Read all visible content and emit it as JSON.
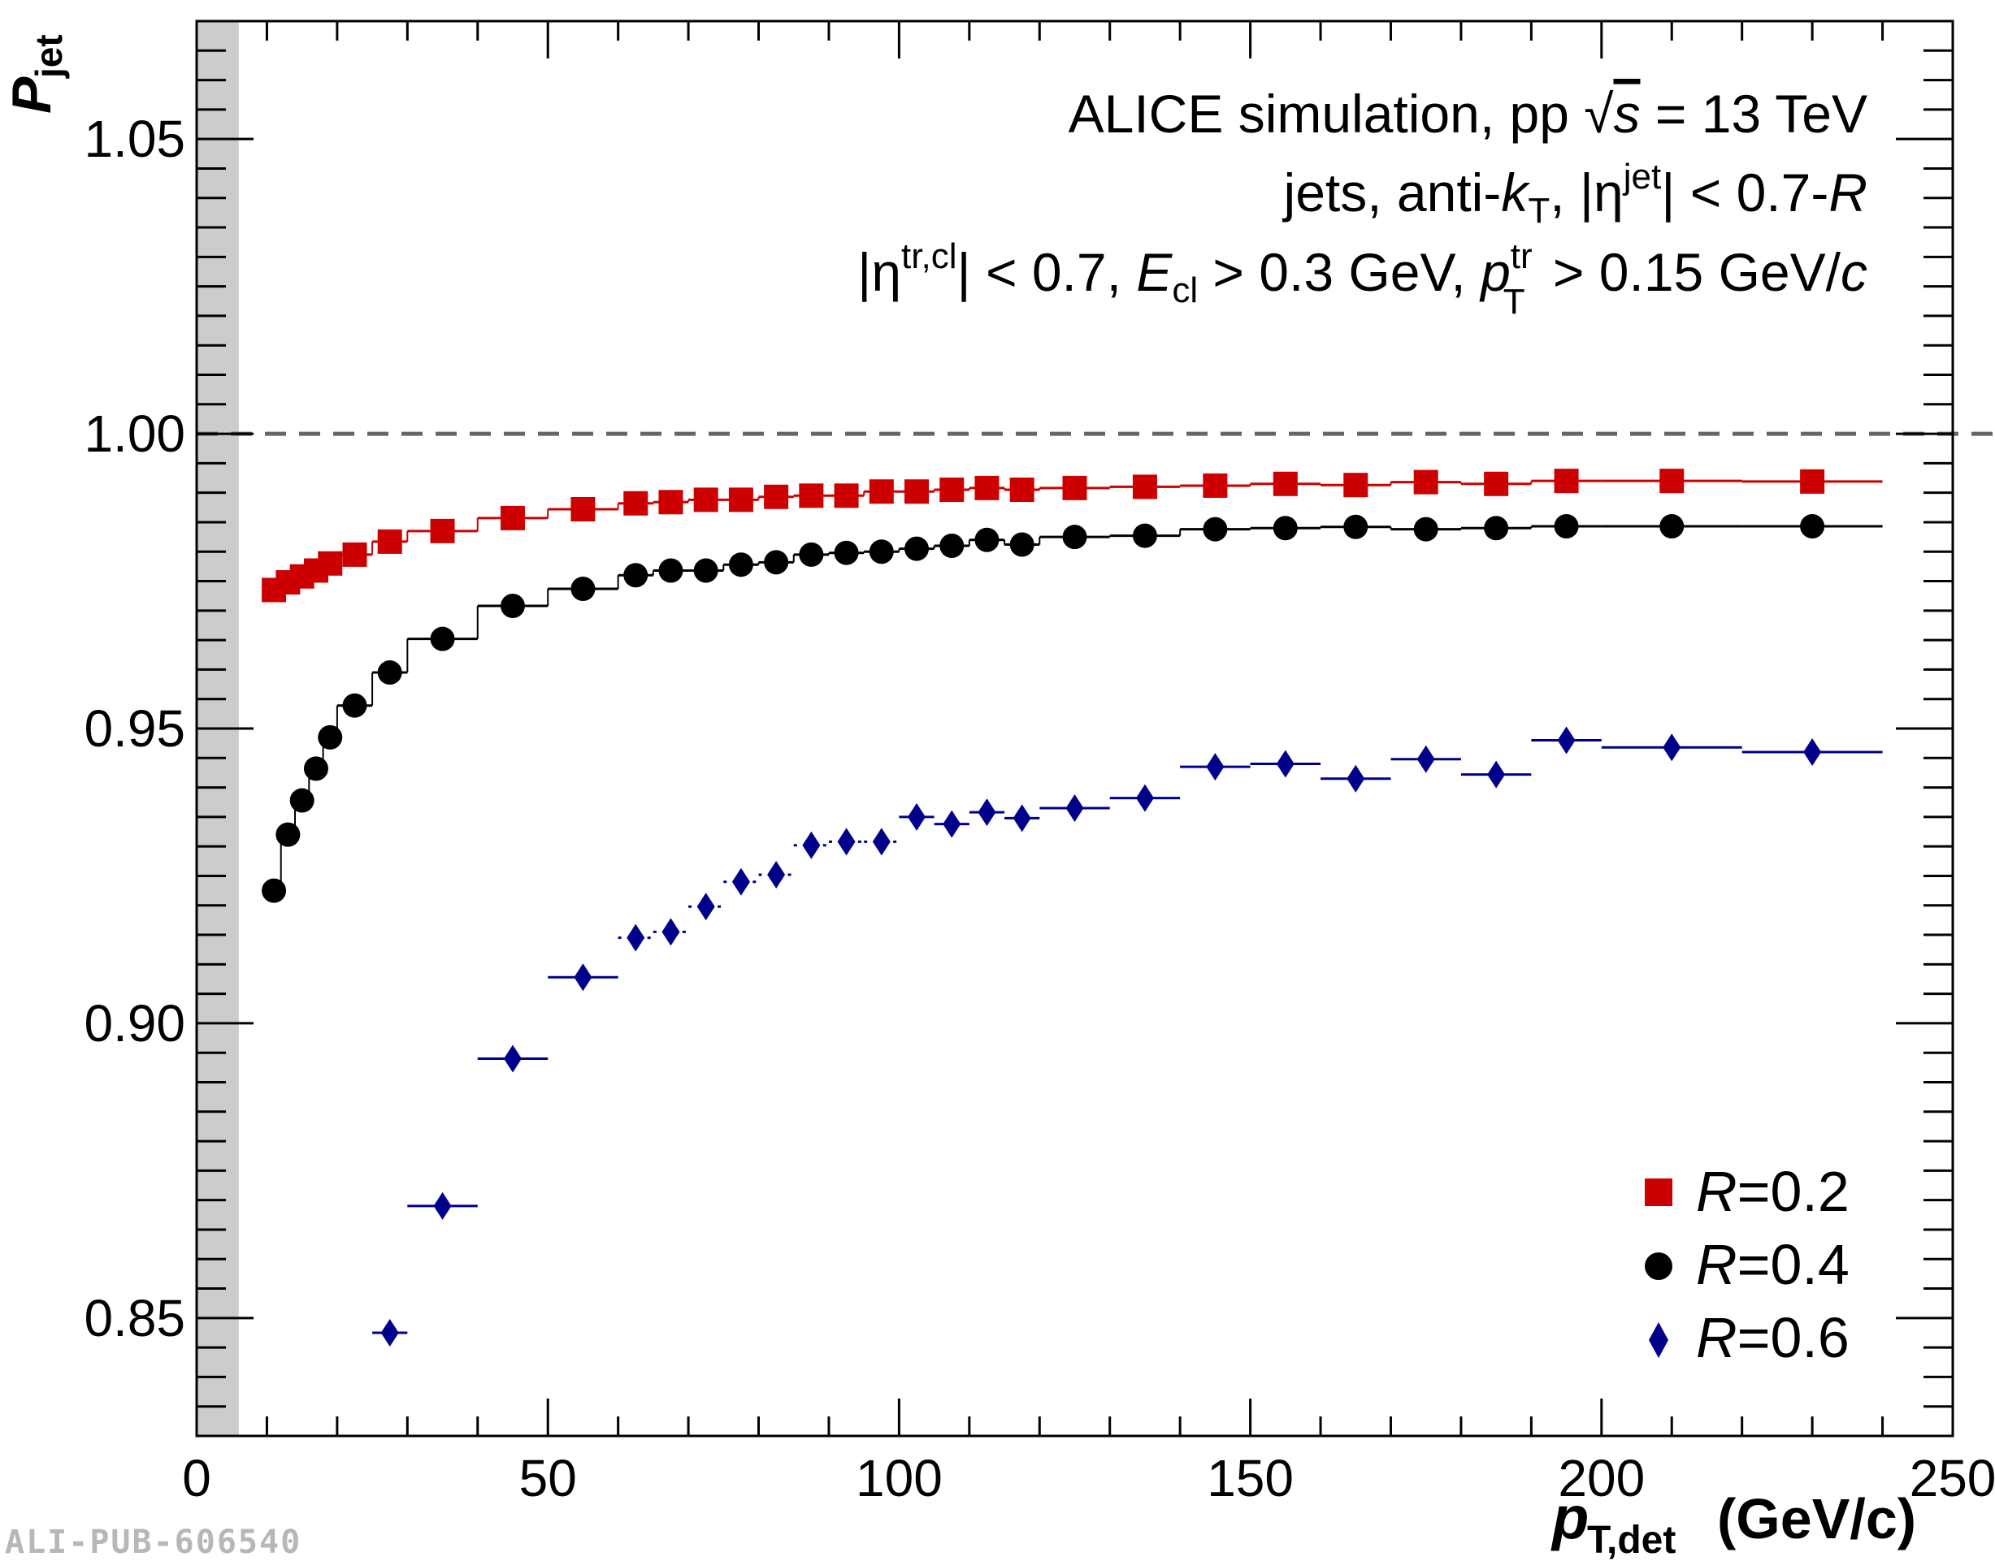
{
  "chart_data": {
    "type": "scatter",
    "xlabel": "p",
    "xlabel_sub": "T,det",
    "xlabel_unit": "(GeV/c)",
    "ylabel": "P",
    "ylabel_sub": "jet",
    "xlim": [
      0,
      250
    ],
    "ylim": [
      0.83,
      1.07
    ],
    "x_ticks": [
      "0",
      "50",
      "100",
      "150",
      "200",
      "250"
    ],
    "y_ticks": [
      "0.85",
      "0.90",
      "0.95",
      "1.00",
      "1.05"
    ],
    "reference_line": 1.0,
    "shaded_band_x": [
      0,
      6
    ],
    "legend_position": "bottom-right",
    "annotations": {
      "line1_a": "ALICE simulation, pp ",
      "line1_sqrt": "√",
      "line1_s": "s",
      "line1_b": " = 13 TeV",
      "line2_a": "jets, anti-",
      "line2_k": "k",
      "line2_ksub": "T",
      "line2_b": ", |η",
      "line2_sup": "jet",
      "line2_c": "| < 0.7-",
      "line2_R": "R",
      "line3_a": "|η",
      "line3_sup": "tr,cl",
      "line3_b": "| < 0.7, ",
      "line3_E": "E",
      "line3_Esub": "cl",
      "line3_c": " > 0.3 GeV, ",
      "line3_p": "p",
      "line3_psup": "tr",
      "line3_psub": "T",
      "line3_d": " > 0.15 GeV/",
      "line3_cunit": "c"
    },
    "watermark": "ALI-PUB-606540",
    "bin_edges": [
      10,
      12,
      14,
      16,
      18,
      20,
      25,
      30,
      40,
      50,
      60,
      65,
      70,
      75,
      80,
      85,
      90,
      95,
      100,
      105,
      110,
      115,
      120,
      130,
      140,
      150,
      160,
      170,
      180,
      190,
      200,
      220,
      240
    ],
    "series": [
      {
        "name": "R=0.2",
        "legend_r": "R",
        "legend_val": "=0.2",
        "marker": "square",
        "color": "#cc0000",
        "x": [
          11,
          13,
          15,
          17,
          19,
          22.5,
          27.5,
          35,
          45,
          55,
          62.5,
          67.5,
          72.5,
          77.5,
          82.5,
          87.5,
          92.5,
          97.5,
          102.5,
          107.5,
          112.5,
          117.5,
          125,
          135,
          145,
          155,
          165,
          175,
          185,
          195,
          210,
          230
        ],
        "y": [
          0.9735,
          0.9748,
          0.9758,
          0.9768,
          0.978,
          0.9795,
          0.9817,
          0.9835,
          0.9857,
          0.9872,
          0.9882,
          0.9884,
          0.9888,
          0.9888,
          0.9893,
          0.9895,
          0.9895,
          0.9902,
          0.9902,
          0.9905,
          0.9908,
          0.9905,
          0.9908,
          0.991,
          0.9912,
          0.9915,
          0.9913,
          0.9918,
          0.9915,
          0.992,
          0.992,
          0.9919
        ]
      },
      {
        "name": "R=0.4",
        "legend_r": "R",
        "legend_val": "=0.4",
        "marker": "circle",
        "color": "#000000",
        "x": [
          11,
          13,
          15,
          17,
          19,
          22.5,
          27.5,
          35,
          45,
          55,
          62.5,
          67.5,
          72.5,
          77.5,
          82.5,
          87.5,
          92.5,
          97.5,
          102.5,
          107.5,
          112.5,
          117.5,
          125,
          135,
          145,
          155,
          165,
          175,
          185,
          195,
          210,
          230
        ],
        "y": [
          0.9225,
          0.932,
          0.9378,
          0.9432,
          0.9485,
          0.9539,
          0.9595,
          0.9652,
          0.9708,
          0.9737,
          0.976,
          0.9768,
          0.9768,
          0.9778,
          0.9782,
          0.9795,
          0.9798,
          0.98,
          0.9805,
          0.981,
          0.982,
          0.9812,
          0.9825,
          0.9827,
          0.9838,
          0.984,
          0.9842,
          0.9838,
          0.984,
          0.9843,
          0.9843,
          0.9843
        ]
      },
      {
        "name": "R=0.6",
        "legend_r": "R",
        "legend_val": "=0.6",
        "marker": "diamond",
        "color": "#00008b",
        "x": [
          27.5,
          35,
          45,
          55,
          62.5,
          67.5,
          72.5,
          77.5,
          82.5,
          87.5,
          92.5,
          97.5,
          102.5,
          107.5,
          112.5,
          117.5,
          125,
          135,
          145,
          155,
          165,
          175,
          185,
          195,
          210,
          230
        ],
        "y": [
          0.8475,
          0.869,
          0.894,
          0.9078,
          0.9145,
          0.9155,
          0.9198,
          0.924,
          0.9252,
          0.9302,
          0.9308,
          0.9308,
          0.935,
          0.9338,
          0.9358,
          0.9348,
          0.9365,
          0.9382,
          0.9435,
          0.944,
          0.9415,
          0.9448,
          0.9422,
          0.948,
          0.9468,
          0.946
        ]
      }
    ]
  }
}
